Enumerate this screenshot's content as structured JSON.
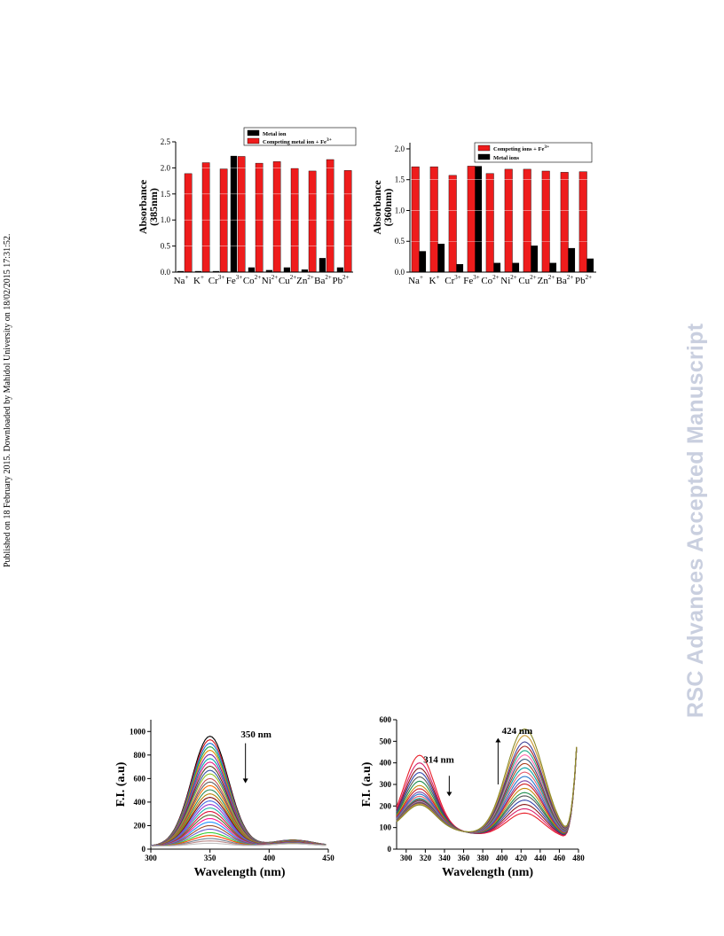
{
  "side_note": "Published on 18 February 2015. Downloaded by Mahidol University on 18/02/2015 17:31:52.",
  "watermark": "RSC Advances Accepted Manuscript",
  "chart_data": [
    {
      "type": "bar",
      "ylabel": "Absorbance",
      "ylabel2": "(385nm)",
      "ylim": [
        0,
        2.5
      ],
      "yticks": [
        "0.0",
        "0.5",
        "1.0",
        "1.5",
        "2.0",
        "2.5"
      ],
      "categories": [
        "Na⁺",
        "K⁺",
        "Cr³⁺",
        "Fe³⁺",
        "Co²⁺",
        "Ni²⁺",
        "Cu²⁺",
        "Zn²⁺",
        "Ba²⁺",
        "Pb²⁺"
      ],
      "legend": [
        "Metal ion",
        "Competing metal ion + Fe³⁺"
      ],
      "series": [
        {
          "name": "Metal ion",
          "color": "#000000",
          "values": [
            0.02,
            0.02,
            0.02,
            2.23,
            0.09,
            0.04,
            0.09,
            0.05,
            0.27,
            0.09
          ]
        },
        {
          "name": "Competing metal ion + Fe³⁺",
          "color": "#ee1c1c",
          "values": [
            1.89,
            2.1,
            1.98,
            2.22,
            2.09,
            2.12,
            1.99,
            1.94,
            2.16,
            1.95
          ]
        }
      ]
    },
    {
      "type": "bar",
      "ylabel": "Absorbance",
      "ylabel2": "(360nm)",
      "ylim": [
        0,
        2.1
      ],
      "yticks": [
        "0.0",
        "0.5",
        "1.0",
        "1.5",
        "2.0"
      ],
      "categories": [
        "Na⁺",
        "K⁺",
        "Cr³⁺",
        "Fe³⁺",
        "Co²⁺",
        "Ni²⁺",
        "Cu²⁺",
        "Zn²⁺",
        "Ba²⁺",
        "Pb²⁺"
      ],
      "legend": [
        "Competing ions + Fe³⁺",
        "Metal ions"
      ],
      "series": [
        {
          "name": "Competing ions + Fe³⁺",
          "color": "#ee1c1c",
          "values": [
            1.71,
            1.71,
            1.57,
            1.72,
            1.6,
            1.67,
            1.67,
            1.64,
            1.62,
            1.63
          ]
        },
        {
          "name": "Metal ions",
          "color": "#000000",
          "values": [
            0.34,
            0.46,
            0.13,
            1.72,
            0.15,
            0.15,
            0.43,
            0.15,
            0.39,
            0.22
          ]
        }
      ]
    },
    {
      "type": "line",
      "xlabel": "Wavelength (nm)",
      "ylabel": "F.I. (a.u)",
      "xlim": [
        300,
        450
      ],
      "ylim": [
        0,
        1100
      ],
      "xticks": [
        "300",
        "350",
        "400",
        "450"
      ],
      "yticks": [
        "0",
        "200",
        "400",
        "600",
        "800",
        "1000"
      ],
      "annotation": "350 nm",
      "curve_model": {
        "peak_nm": 350,
        "peak_values": [
          960,
          930,
          900,
          870,
          840,
          805,
          770,
          740,
          705,
          670,
          640,
          600,
          570,
          540,
          505,
          470,
          440,
          410,
          380,
          350,
          320,
          290,
          260,
          230,
          200,
          170,
          140,
          115,
          90,
          70,
          50
        ]
      }
    },
    {
      "type": "line",
      "xlabel": "Wavelength (nm)",
      "ylabel": "F.I. (a.u)",
      "xlim": [
        290,
        480
      ],
      "ylim": [
        0,
        600
      ],
      "xticks": [
        "300",
        "320",
        "340",
        "360",
        "380",
        "400",
        "420",
        "440",
        "460",
        "480"
      ],
      "yticks": [
        "0",
        "100",
        "200",
        "300",
        "400",
        "500",
        "600"
      ],
      "annotations": [
        "314 nm",
        "424 nm"
      ],
      "curve_model": {
        "isosbestic_nm": 355,
        "peak_314": [
          330,
          295,
          270,
          250,
          230,
          210,
          190,
          175,
          160,
          150,
          140,
          130,
          125,
          120,
          115,
          112,
          110,
          108,
          105,
          100
        ],
        "peak_424": [
          120,
          140,
          160,
          180,
          200,
          215,
          235,
          255,
          270,
          290,
          310,
          330,
          350,
          370,
          390,
          410,
          430,
          450,
          480,
          510
        ]
      }
    }
  ]
}
